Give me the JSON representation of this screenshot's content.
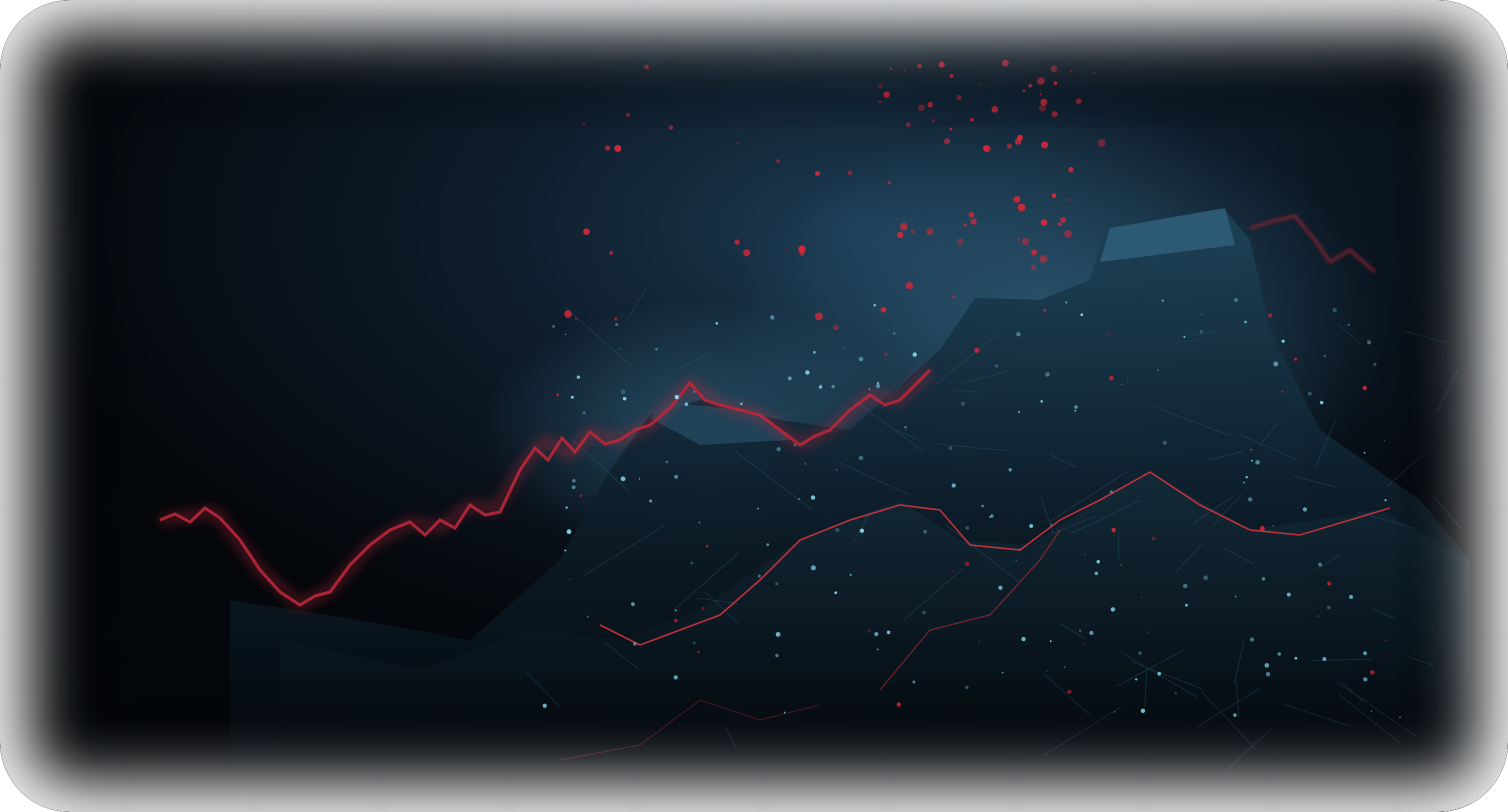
{
  "scene": {
    "subject": "abstract-data-landscape",
    "colors": {
      "background": "#05080d",
      "glow": "#1c3a52",
      "terrain": "#0f2230",
      "terrain_highlight": "#2a5670",
      "trend_line": "#c2283a",
      "particle_red": "#d8283a",
      "particle_cyan": "#7fd6ec"
    }
  }
}
